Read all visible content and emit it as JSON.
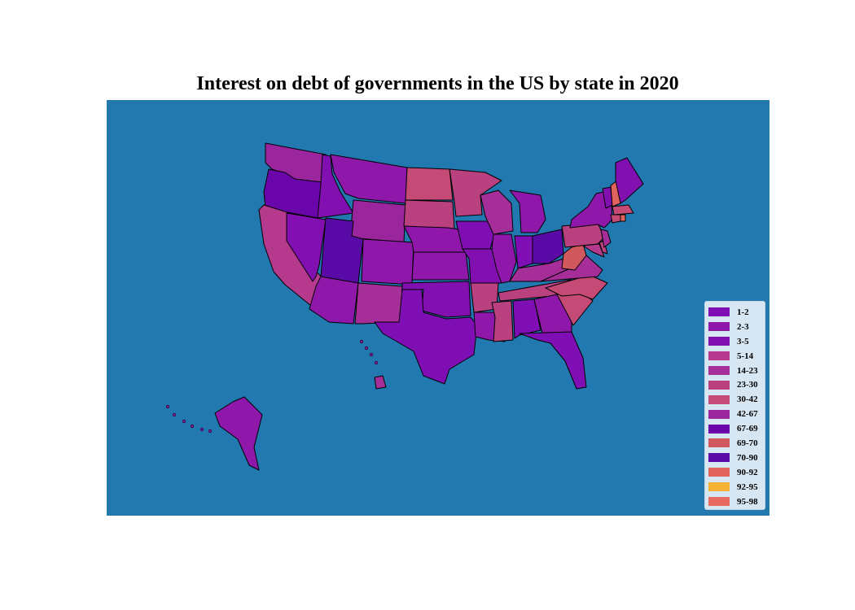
{
  "map": {
    "title": "Interest on debt of governments in the US by state in 2020",
    "ocean_color": "#2279b0",
    "border_color": "#000000",
    "region": "United States",
    "legend": {
      "placement": "bottom-right",
      "entries": [
        {
          "label": "1-2",
          "color": "#7f0fb4"
        },
        {
          "label": "2-3",
          "color": "#8f18ab"
        },
        {
          "label": "3-5",
          "color": "#820fb0"
        },
        {
          "label": "5-14",
          "color": "#b5398c"
        },
        {
          "label": "14-23",
          "color": "#a62e98"
        },
        {
          "label": "23-30",
          "color": "#b9417f"
        },
        {
          "label": "30-42",
          "color": "#c54b76"
        },
        {
          "label": "42-67",
          "color": "#9b259d"
        },
        {
          "label": "67-69",
          "color": "#6a05aa"
        },
        {
          "label": "69-70",
          "color": "#d2585f"
        },
        {
          "label": "70-90",
          "color": "#5a0aa6"
        },
        {
          "label": "90-92",
          "color": "#e1635d"
        },
        {
          "label": "92-95",
          "color": "#f7b135"
        },
        {
          "label": "95-98",
          "color": "#e86a60"
        }
      ]
    }
  }
}
